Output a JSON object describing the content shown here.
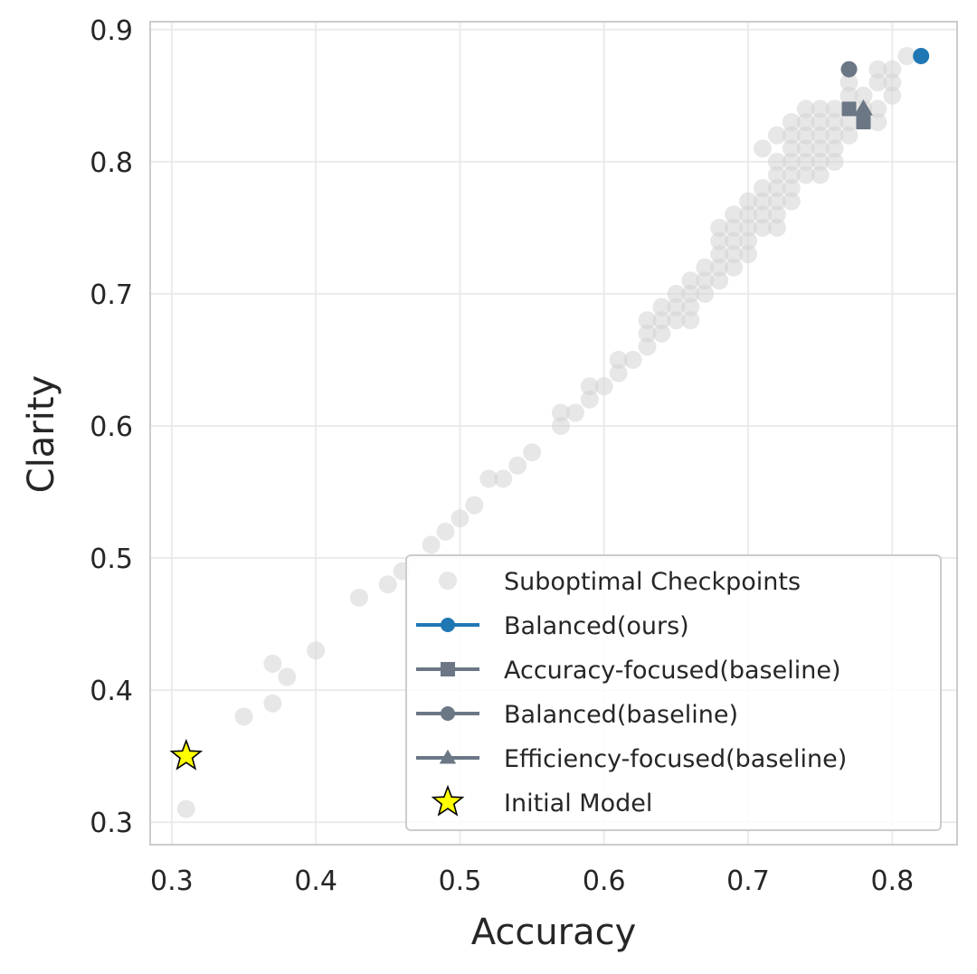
{
  "chart_data": {
    "type": "scatter",
    "title": "",
    "xlabel": "Accuracy",
    "ylabel": "Clarity",
    "xlim": [
      0.285,
      0.845
    ],
    "ylim": [
      0.283,
      0.906
    ],
    "xticks": [
      0.3,
      0.4,
      0.5,
      0.6,
      0.7,
      0.8
    ],
    "yticks": [
      0.3,
      0.4,
      0.5,
      0.6,
      0.7,
      0.8,
      0.9
    ],
    "xtick_labels": [
      "0.3",
      "0.4",
      "0.5",
      "0.6",
      "0.7",
      "0.8"
    ],
    "ytick_labels": [
      "0.3",
      "0.4",
      "0.5",
      "0.6",
      "0.7",
      "0.8",
      "0.9"
    ],
    "grid": true,
    "legend_position": "bottom-right",
    "series": [
      {
        "name": "Suboptimal Checkpoints",
        "marker": "circle",
        "color": "#d3d3d3",
        "points": [
          [
            0.31,
            0.31
          ],
          [
            0.35,
            0.38
          ],
          [
            0.37,
            0.42
          ],
          [
            0.37,
            0.39
          ],
          [
            0.38,
            0.41
          ],
          [
            0.4,
            0.43
          ],
          [
            0.43,
            0.47
          ],
          [
            0.45,
            0.48
          ],
          [
            0.46,
            0.49
          ],
          [
            0.48,
            0.51
          ],
          [
            0.49,
            0.52
          ],
          [
            0.5,
            0.53
          ],
          [
            0.51,
            0.54
          ],
          [
            0.52,
            0.56
          ],
          [
            0.53,
            0.56
          ],
          [
            0.54,
            0.57
          ],
          [
            0.55,
            0.58
          ],
          [
            0.57,
            0.6
          ],
          [
            0.57,
            0.61
          ],
          [
            0.58,
            0.61
          ],
          [
            0.59,
            0.62
          ],
          [
            0.59,
            0.63
          ],
          [
            0.6,
            0.63
          ],
          [
            0.61,
            0.64
          ],
          [
            0.61,
            0.65
          ],
          [
            0.62,
            0.65
          ],
          [
            0.63,
            0.66
          ],
          [
            0.63,
            0.67
          ],
          [
            0.63,
            0.68
          ],
          [
            0.64,
            0.67
          ],
          [
            0.64,
            0.68
          ],
          [
            0.64,
            0.69
          ],
          [
            0.65,
            0.68
          ],
          [
            0.65,
            0.69
          ],
          [
            0.65,
            0.7
          ],
          [
            0.66,
            0.68
          ],
          [
            0.66,
            0.69
          ],
          [
            0.66,
            0.7
          ],
          [
            0.66,
            0.71
          ],
          [
            0.67,
            0.7
          ],
          [
            0.67,
            0.71
          ],
          [
            0.67,
            0.72
          ],
          [
            0.68,
            0.71
          ],
          [
            0.68,
            0.72
          ],
          [
            0.68,
            0.73
          ],
          [
            0.68,
            0.74
          ],
          [
            0.68,
            0.75
          ],
          [
            0.69,
            0.72
          ],
          [
            0.69,
            0.73
          ],
          [
            0.69,
            0.74
          ],
          [
            0.69,
            0.75
          ],
          [
            0.69,
            0.76
          ],
          [
            0.7,
            0.73
          ],
          [
            0.7,
            0.74
          ],
          [
            0.7,
            0.75
          ],
          [
            0.7,
            0.76
          ],
          [
            0.7,
            0.77
          ],
          [
            0.71,
            0.75
          ],
          [
            0.71,
            0.76
          ],
          [
            0.71,
            0.77
          ],
          [
            0.71,
            0.78
          ],
          [
            0.71,
            0.81
          ],
          [
            0.72,
            0.75
          ],
          [
            0.72,
            0.76
          ],
          [
            0.72,
            0.77
          ],
          [
            0.72,
            0.78
          ],
          [
            0.72,
            0.79
          ],
          [
            0.72,
            0.8
          ],
          [
            0.72,
            0.82
          ],
          [
            0.73,
            0.77
          ],
          [
            0.73,
            0.78
          ],
          [
            0.73,
            0.79
          ],
          [
            0.73,
            0.8
          ],
          [
            0.73,
            0.81
          ],
          [
            0.73,
            0.82
          ],
          [
            0.73,
            0.83
          ],
          [
            0.74,
            0.79
          ],
          [
            0.74,
            0.8
          ],
          [
            0.74,
            0.81
          ],
          [
            0.74,
            0.82
          ],
          [
            0.74,
            0.83
          ],
          [
            0.74,
            0.84
          ],
          [
            0.75,
            0.79
          ],
          [
            0.75,
            0.8
          ],
          [
            0.75,
            0.81
          ],
          [
            0.75,
            0.82
          ],
          [
            0.75,
            0.83
          ],
          [
            0.75,
            0.84
          ],
          [
            0.76,
            0.8
          ],
          [
            0.76,
            0.81
          ],
          [
            0.76,
            0.82
          ],
          [
            0.76,
            0.83
          ],
          [
            0.76,
            0.84
          ],
          [
            0.77,
            0.82
          ],
          [
            0.77,
            0.83
          ],
          [
            0.77,
            0.85
          ],
          [
            0.77,
            0.86
          ],
          [
            0.78,
            0.84
          ],
          [
            0.78,
            0.85
          ],
          [
            0.79,
            0.83
          ],
          [
            0.79,
            0.84
          ],
          [
            0.79,
            0.86
          ],
          [
            0.79,
            0.87
          ],
          [
            0.8,
            0.85
          ],
          [
            0.8,
            0.86
          ],
          [
            0.8,
            0.87
          ],
          [
            0.81,
            0.88
          ]
        ]
      },
      {
        "name": "Balanced(ours)",
        "marker": "circle",
        "color": "#1f77b4",
        "points": [
          [
            0.82,
            0.88
          ]
        ]
      },
      {
        "name": "Accuracy-focused(baseline)",
        "marker": "square",
        "color": "#6b7785",
        "points": [
          [
            0.77,
            0.84
          ],
          [
            0.78,
            0.83
          ]
        ]
      },
      {
        "name": "Balanced(baseline)",
        "marker": "circle",
        "color": "#6b7785",
        "points": [
          [
            0.77,
            0.87
          ]
        ]
      },
      {
        "name": "Efficiency-focused(baseline)",
        "marker": "triangle",
        "color": "#6b7785",
        "points": [
          [
            0.78,
            0.84
          ]
        ]
      },
      {
        "name": "Initial Model",
        "marker": "star",
        "color": "#ffff00",
        "points": [
          [
            0.31,
            0.35
          ]
        ]
      }
    ]
  }
}
